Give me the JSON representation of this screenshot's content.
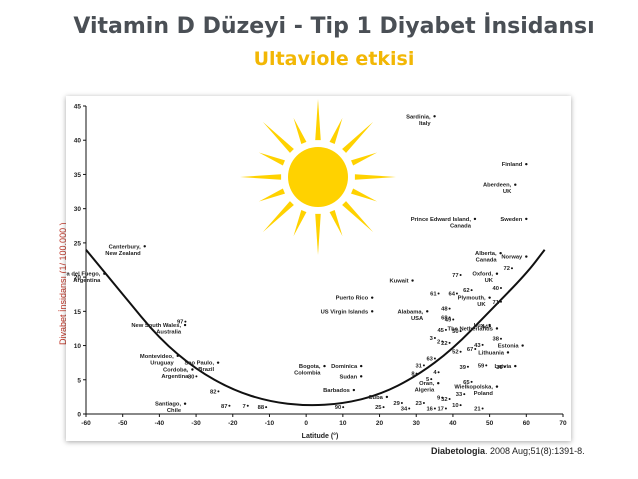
{
  "header": {
    "title": "Vitamin D Düzeyi - Tip 1 Diyabet  İnsidansı",
    "subtitle": "Ultaviole etkisi"
  },
  "y_axis_label": "Diyabet İnsidansı (1/ 100.000 )",
  "citation": {
    "journal": "Diabetologia",
    "rest": ". 2008 Aug;51(8):1391-8."
  },
  "colors": {
    "sun": "#ffd200",
    "title": "#4a4f55",
    "subtitle": "#f2b705",
    "ylabel": "#c0392b"
  },
  "icons": {
    "sun": "sun-icon"
  },
  "chart_data": {
    "type": "scatter",
    "xlabel": "Latitude (°)",
    "xlim": [
      -60,
      70
    ],
    "ylim": [
      0,
      45
    ],
    "xticks": [
      -60,
      -50,
      -40,
      -30,
      -20,
      -10,
      0,
      10,
      20,
      30,
      40,
      50,
      60,
      70
    ],
    "yticks": [
      0,
      5,
      10,
      15,
      20,
      25,
      30,
      35,
      40,
      45
    ],
    "curve": [
      [
        -60,
        24
      ],
      [
        -50,
        17.5
      ],
      [
        -40,
        11
      ],
      [
        -30,
        6.5
      ],
      [
        -20,
        3.5
      ],
      [
        -10,
        1.8
      ],
      [
        0,
        1.2
      ],
      [
        10,
        1.5
      ],
      [
        20,
        2.8
      ],
      [
        30,
        5.5
      ],
      [
        40,
        9.5
      ],
      [
        50,
        15
      ],
      [
        60,
        20.5
      ],
      [
        65,
        24
      ]
    ],
    "labeled_points": [
      {
        "label": "Sardinia, Italy",
        "x": 35,
        "y": 43.5
      },
      {
        "label": "Finland",
        "x": 60,
        "y": 36.5
      },
      {
        "label": "Aberdeen, UK",
        "x": 57,
        "y": 33.5
      },
      {
        "label": "Prince Edward Island, Canada",
        "x": 46,
        "y": 28.5
      },
      {
        "label": "Sweden",
        "x": 60,
        "y": 28.5
      },
      {
        "label": "Canterbury, New Zealand",
        "x": -44,
        "y": 24.5
      },
      {
        "label": "Alberta, Canada",
        "x": 53,
        "y": 23.5
      },
      {
        "label": "Norway",
        "x": 60,
        "y": 23
      },
      {
        "label": "Oxford, UK",
        "x": 52,
        "y": 20.5
      },
      {
        "label": "Tierra del Fuego, Argentina",
        "x": -55,
        "y": 20.5
      },
      {
        "label": "Kuwait",
        "x": 29,
        "y": 19.5
      },
      {
        "label": "Puerto Rico",
        "x": 18,
        "y": 17
      },
      {
        "label": "Plymouth, UK",
        "x": 50,
        "y": 17
      },
      {
        "label": "Alabama, USA",
        "x": 33,
        "y": 15
      },
      {
        "label": "US Virgin Islands",
        "x": 18,
        "y": 15
      },
      {
        "label": "Lux.",
        "x": 50,
        "y": 13
      },
      {
        "label": "The Netherlands",
        "x": 52,
        "y": 12.5
      },
      {
        "label": "New South Wales, Australia",
        "x": -33,
        "y": 13
      },
      {
        "label": "Estonia",
        "x": 59,
        "y": 10
      },
      {
        "label": "Montevideo, Uruguay",
        "x": -35,
        "y": 8.5
      },
      {
        "label": "Lithuania",
        "x": 55,
        "y": 9
      },
      {
        "label": "Bogota, Colombia",
        "x": 5,
        "y": 7
      },
      {
        "label": "Dominica",
        "x": 15,
        "y": 7
      },
      {
        "label": "Sudan",
        "x": 15,
        "y": 5.5
      },
      {
        "label": "Sao Paulo, Brazil",
        "x": -24,
        "y": 7.5
      },
      {
        "label": "Latvia",
        "x": 57,
        "y": 7
      },
      {
        "label": "Cordoba, Argentina",
        "x": -31,
        "y": 6.5
      },
      {
        "label": "Oran, Algeria",
        "x": 36,
        "y": 4.5
      },
      {
        "label": "Wielkopolska, Poland",
        "x": 52,
        "y": 4
      },
      {
        "label": "Barbados",
        "x": 13,
        "y": 3.5
      },
      {
        "label": "Cuba",
        "x": 22,
        "y": 2.5
      },
      {
        "label": "Santiago, Chile",
        "x": -33,
        "y": 1.5
      }
    ],
    "numbered_points": [
      {
        "label": "97",
        "x": -34,
        "y": 13.5
      },
      {
        "label": "80",
        "x": -31,
        "y": 5.5
      },
      {
        "label": "82",
        "x": -25,
        "y": 3.3
      },
      {
        "label": "87",
        "x": -22,
        "y": 1.2
      },
      {
        "label": "7",
        "x": -17,
        "y": 1.2
      },
      {
        "label": "88",
        "x": -12,
        "y": 1
      },
      {
        "label": "90",
        "x": 9,
        "y": 1
      },
      {
        "label": "25",
        "x": 20,
        "y": 1
      },
      {
        "label": "29",
        "x": 25,
        "y": 1.6
      },
      {
        "label": "34",
        "x": 27,
        "y": 0.8
      },
      {
        "label": "23",
        "x": 31,
        "y": 1.6
      },
      {
        "label": "16",
        "x": 34,
        "y": 0.8
      },
      {
        "label": "17",
        "x": 37,
        "y": 0.8
      },
      {
        "label": "10",
        "x": 41,
        "y": 1.3
      },
      {
        "label": "21",
        "x": 47,
        "y": 0.8
      },
      {
        "label": "32",
        "x": 38,
        "y": 2.2
      },
      {
        "label": "9",
        "x": 36,
        "y": 2.4
      },
      {
        "label": "33",
        "x": 42,
        "y": 2.9
      },
      {
        "label": "65",
        "x": 44,
        "y": 4.7
      },
      {
        "label": "5",
        "x": 33,
        "y": 5.1
      },
      {
        "label": "4",
        "x": 35,
        "y": 6.1
      },
      {
        "label": "8",
        "x": 29,
        "y": 5.9
      },
      {
        "label": "31",
        "x": 31,
        "y": 7.1
      },
      {
        "label": "63",
        "x": 34,
        "y": 8.1
      },
      {
        "label": "39",
        "x": 43,
        "y": 6.9
      },
      {
        "label": "59",
        "x": 48,
        "y": 7.1
      },
      {
        "label": "36",
        "x": 53,
        "y": 6.9
      },
      {
        "label": "52",
        "x": 41,
        "y": 9.1
      },
      {
        "label": "67",
        "x": 45,
        "y": 9.5
      },
      {
        "label": "43",
        "x": 47,
        "y": 10.1
      },
      {
        "label": "38",
        "x": 52,
        "y": 11
      },
      {
        "label": "3",
        "x": 34,
        "y": 11.1
      },
      {
        "label": "22",
        "x": 38,
        "y": 10.4
      },
      {
        "label": "2",
        "x": 36,
        "y": 10.6
      },
      {
        "label": "45",
        "x": 37,
        "y": 12.3
      },
      {
        "label": "50",
        "x": 41,
        "y": 12.1
      },
      {
        "label": "44",
        "x": 49,
        "y": 12.8
      },
      {
        "label": "68",
        "x": 38,
        "y": 14.1
      },
      {
        "label": "49",
        "x": 39,
        "y": 13.8
      },
      {
        "label": "48",
        "x": 38,
        "y": 15.4
      },
      {
        "label": "61",
        "x": 35,
        "y": 17.6
      },
      {
        "label": "64",
        "x": 40,
        "y": 17.6
      },
      {
        "label": "62",
        "x": 44,
        "y": 18.1
      },
      {
        "label": "40",
        "x": 52,
        "y": 18.4
      },
      {
        "label": "71",
        "x": 52,
        "y": 16.4
      },
      {
        "label": "77",
        "x": 41,
        "y": 20.3
      },
      {
        "label": "72",
        "x": 55,
        "y": 21.3
      }
    ]
  }
}
